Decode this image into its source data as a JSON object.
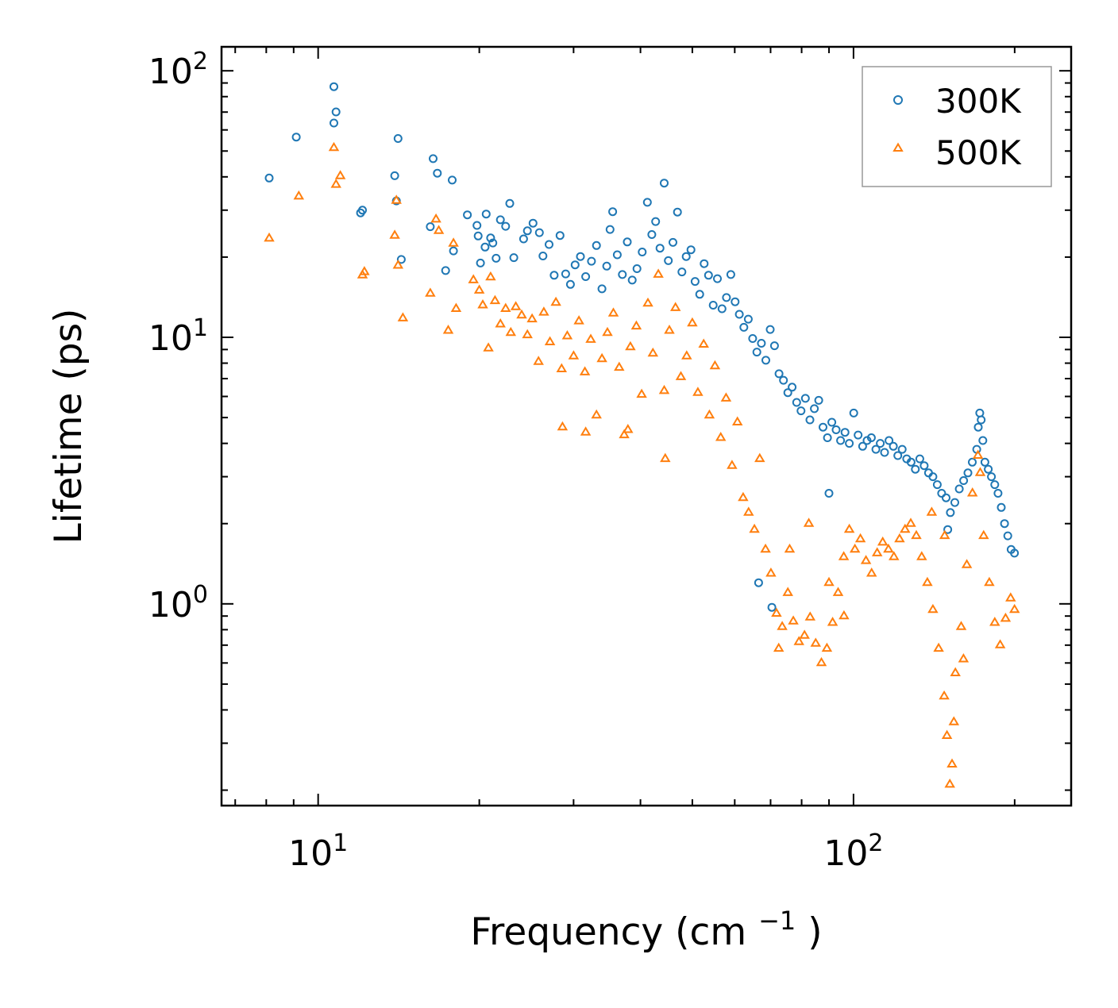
{
  "chart_data": {
    "type": "scatter",
    "title": "",
    "xlabel": "Frequency (cm",
    "xlabel_superscript": "−1",
    "xlabel_close": ")",
    "ylabel": "Lifetime (ps)",
    "xscale": "log",
    "yscale": "log",
    "xlim": [
      6.6,
      255
    ],
    "ylim": [
      0.175,
      123
    ],
    "x_ticks": [
      {
        "value": 10,
        "base": "10",
        "exp": "1"
      },
      {
        "value": 100,
        "base": "10",
        "exp": "2"
      }
    ],
    "y_ticks": [
      {
        "value": 1,
        "base": "10",
        "exp": "0"
      },
      {
        "value": 10,
        "base": "10",
        "exp": "1"
      },
      {
        "value": 100,
        "base": "10",
        "exp": "2"
      }
    ],
    "legend_position": "top-right",
    "series": [
      {
        "name": "300K",
        "marker": "circle",
        "color": "#1f77b4",
        "points": [
          [
            8.1,
            39.6
          ],
          [
            9.1,
            56.4
          ],
          [
            10.7,
            87.2
          ],
          [
            10.8,
            70.1
          ],
          [
            10.7,
            63.7
          ],
          [
            12.0,
            29.3
          ],
          [
            12.1,
            30.0
          ],
          [
            13.9,
            40.4
          ],
          [
            14.1,
            55.7
          ],
          [
            14.0,
            32.5
          ],
          [
            14.3,
            19.6
          ],
          [
            16.2,
            26.0
          ],
          [
            16.4,
            46.8
          ],
          [
            16.7,
            41.3
          ],
          [
            17.3,
            17.8
          ],
          [
            17.8,
            38.9
          ],
          [
            17.9,
            21.1
          ],
          [
            19.0,
            28.8
          ],
          [
            19.8,
            26.3
          ],
          [
            19.9,
            24.0
          ],
          [
            20.1,
            19.0
          ],
          [
            20.5,
            21.8
          ],
          [
            20.6,
            29.0
          ],
          [
            21.0,
            23.6
          ],
          [
            21.2,
            22.6
          ],
          [
            21.5,
            19.8
          ],
          [
            21.9,
            27.6
          ],
          [
            22.4,
            26.1
          ],
          [
            22.8,
            31.8
          ],
          [
            23.2,
            19.9
          ],
          [
            24.2,
            23.4
          ],
          [
            24.6,
            25.1
          ],
          [
            25.2,
            26.8
          ],
          [
            25.9,
            24.7
          ],
          [
            26.3,
            20.2
          ],
          [
            27.0,
            22.3
          ],
          [
            27.6,
            17.1
          ],
          [
            28.3,
            24.1
          ],
          [
            29.0,
            17.3
          ],
          [
            29.6,
            15.8
          ],
          [
            30.2,
            18.7
          ],
          [
            30.9,
            20.1
          ],
          [
            31.6,
            16.9
          ],
          [
            32.4,
            19.3
          ],
          [
            33.1,
            22.1
          ],
          [
            33.9,
            15.2
          ],
          [
            34.6,
            18.5
          ],
          [
            35.1,
            25.4
          ],
          [
            35.5,
            29.6
          ],
          [
            36.2,
            20.4
          ],
          [
            37.0,
            17.2
          ],
          [
            37.8,
            22.8
          ],
          [
            38.6,
            16.4
          ],
          [
            39.4,
            18.1
          ],
          [
            40.3,
            20.9
          ],
          [
            41.2,
            32.1
          ],
          [
            42.0,
            24.3
          ],
          [
            42.7,
            27.2
          ],
          [
            43.5,
            21.6
          ],
          [
            44.3,
            37.9
          ],
          [
            45.1,
            19.4
          ],
          [
            46.0,
            22.7
          ],
          [
            46.9,
            29.5
          ],
          [
            47.8,
            17.6
          ],
          [
            48.7,
            20.1
          ],
          [
            49.7,
            21.3
          ],
          [
            50.6,
            16.2
          ],
          [
            51.6,
            14.5
          ],
          [
            52.6,
            18.9
          ],
          [
            53.6,
            17.1
          ],
          [
            54.7,
            13.2
          ],
          [
            55.7,
            16.6
          ],
          [
            56.8,
            12.8
          ],
          [
            57.9,
            14.1
          ],
          [
            59.0,
            17.2
          ],
          [
            60.1,
            13.6
          ],
          [
            61.2,
            12.2
          ],
          [
            62.4,
            10.9
          ],
          [
            63.6,
            11.7
          ],
          [
            64.8,
            9.9
          ],
          [
            66.0,
            8.8
          ],
          [
            67.3,
            9.5
          ],
          [
            68.6,
            8.2
          ],
          [
            69.9,
            10.7
          ],
          [
            71.2,
            9.3
          ],
          [
            72.6,
            7.3
          ],
          [
            74.0,
            6.9
          ],
          [
            75.4,
            6.2
          ],
          [
            76.8,
            6.5
          ],
          [
            78.3,
            5.7
          ],
          [
            79.8,
            5.3
          ],
          [
            81.3,
            5.9
          ],
          [
            82.9,
            4.9
          ],
          [
            84.5,
            5.4
          ],
          [
            86.1,
            5.8
          ],
          [
            87.7,
            4.6
          ],
          [
            89.4,
            4.2
          ],
          [
            91.1,
            4.8
          ],
          [
            92.8,
            4.5
          ],
          [
            94.6,
            4.1
          ],
          [
            96.4,
            4.4
          ],
          [
            98.2,
            4.0
          ],
          [
            100.1,
            5.2
          ],
          [
            102.0,
            4.3
          ],
          [
            104.0,
            3.9
          ],
          [
            106.0,
            4.1
          ],
          [
            108.0,
            4.2
          ],
          [
            110.1,
            3.8
          ],
          [
            112.2,
            4.0
          ],
          [
            114.3,
            3.7
          ],
          [
            116.5,
            4.1
          ],
          [
            118.7,
            3.9
          ],
          [
            121.0,
            3.6
          ],
          [
            123.3,
            3.8
          ],
          [
            125.7,
            3.5
          ],
          [
            128.1,
            3.4
          ],
          [
            130.5,
            3.2
          ],
          [
            133.0,
            3.5
          ],
          [
            135.5,
            3.3
          ],
          [
            138.1,
            3.1
          ],
          [
            140.7,
            3.0
          ],
          [
            143.4,
            2.8
          ],
          [
            146.1,
            2.6
          ],
          [
            148.9,
            2.5
          ],
          [
            151.7,
            2.2
          ],
          [
            154.6,
            2.4
          ],
          [
            157.6,
            2.7
          ],
          [
            160.6,
            2.9
          ],
          [
            163.6,
            3.1
          ],
          [
            166.7,
            3.4
          ],
          [
            169.9,
            3.8
          ],
          [
            171.0,
            4.6
          ],
          [
            172.1,
            5.2
          ],
          [
            173.2,
            4.9
          ],
          [
            174.4,
            4.1
          ],
          [
            176.0,
            3.4
          ],
          [
            178.5,
            3.2
          ],
          [
            181.0,
            3.0
          ],
          [
            183.6,
            2.8
          ],
          [
            186.2,
            2.6
          ],
          [
            188.8,
            2.3
          ],
          [
            191.5,
            2.0
          ],
          [
            194.2,
            1.8
          ],
          [
            197.0,
            1.6
          ],
          [
            199.8,
            1.55
          ],
          [
            66.5,
            1.2
          ],
          [
            70.4,
            0.97
          ],
          [
            90.0,
            2.6
          ],
          [
            150.0,
            1.9
          ]
        ]
      },
      {
        "name": "500K",
        "marker": "triangle",
        "color": "#ff7f0e",
        "points": [
          [
            8.1,
            23.5
          ],
          [
            9.2,
            33.8
          ],
          [
            10.7,
            51.4
          ],
          [
            10.8,
            37.4
          ],
          [
            11.0,
            40.3
          ],
          [
            12.1,
            17.1
          ],
          [
            12.2,
            17.6
          ],
          [
            13.9,
            24.1
          ],
          [
            14.0,
            32.6
          ],
          [
            14.1,
            18.6
          ],
          [
            14.4,
            11.8
          ],
          [
            16.2,
            14.6
          ],
          [
            16.6,
            27.7
          ],
          [
            16.8,
            25.1
          ],
          [
            17.5,
            10.6
          ],
          [
            17.9,
            22.5
          ],
          [
            18.1,
            12.8
          ],
          [
            19.5,
            16.4
          ],
          [
            20.0,
            15.0
          ],
          [
            20.3,
            13.2
          ],
          [
            20.8,
            9.1
          ],
          [
            21.0,
            16.8
          ],
          [
            21.4,
            13.7
          ],
          [
            21.9,
            11.2
          ],
          [
            22.4,
            12.8
          ],
          [
            22.9,
            10.4
          ],
          [
            23.4,
            13.0
          ],
          [
            24.0,
            12.1
          ],
          [
            24.6,
            10.2
          ],
          [
            25.1,
            11.7
          ],
          [
            25.8,
            8.1
          ],
          [
            26.4,
            12.4
          ],
          [
            27.1,
            9.6
          ],
          [
            27.8,
            13.5
          ],
          [
            28.5,
            7.6
          ],
          [
            28.6,
            4.6
          ],
          [
            29.2,
            10.1
          ],
          [
            30.0,
            8.5
          ],
          [
            30.7,
            11.5
          ],
          [
            31.5,
            7.4
          ],
          [
            31.6,
            4.4
          ],
          [
            32.3,
            9.8
          ],
          [
            33.1,
            5.1
          ],
          [
            33.9,
            8.3
          ],
          [
            34.7,
            10.4
          ],
          [
            35.6,
            12.3
          ],
          [
            36.5,
            7.7
          ],
          [
            37.3,
            4.3
          ],
          [
            37.9,
            4.5
          ],
          [
            38.3,
            9.2
          ],
          [
            39.3,
            11.0
          ],
          [
            40.2,
            6.1
          ],
          [
            41.3,
            13.4
          ],
          [
            42.2,
            8.7
          ],
          [
            43.2,
            17.2
          ],
          [
            44.3,
            6.3
          ],
          [
            44.5,
            3.5
          ],
          [
            45.3,
            10.6
          ],
          [
            46.5,
            12.9
          ],
          [
            47.6,
            7.1
          ],
          [
            48.8,
            8.5
          ],
          [
            50.0,
            11.3
          ],
          [
            51.2,
            6.2
          ],
          [
            52.5,
            9.4
          ],
          [
            53.8,
            5.1
          ],
          [
            55.1,
            7.8
          ],
          [
            56.5,
            4.2
          ],
          [
            57.8,
            5.9
          ],
          [
            59.3,
            3.3
          ],
          [
            60.7,
            4.8
          ],
          [
            62.2,
            2.5
          ],
          [
            63.7,
            2.2
          ],
          [
            65.3,
            1.9
          ],
          [
            66.8,
            3.5
          ],
          [
            68.5,
            1.6
          ],
          [
            70.1,
            1.3
          ],
          [
            71.8,
            0.92
          ],
          [
            72.5,
            0.68
          ],
          [
            73.6,
            0.82
          ],
          [
            75.4,
            1.1
          ],
          [
            77.2,
            0.86
          ],
          [
            79.1,
            0.72
          ],
          [
            81.0,
            0.76
          ],
          [
            83.0,
            0.89
          ],
          [
            85.0,
            0.71
          ],
          [
            87.1,
            0.6
          ],
          [
            89.2,
            0.68
          ],
          [
            91.4,
            0.85
          ],
          [
            93.6,
            1.1
          ],
          [
            95.9,
            1.5
          ],
          [
            98.2,
            1.9
          ],
          [
            100.6,
            1.6
          ],
          [
            103.0,
            1.75
          ],
          [
            105.5,
            1.45
          ],
          [
            108.1,
            1.3
          ],
          [
            110.7,
            1.55
          ],
          [
            113.4,
            1.7
          ],
          [
            116.2,
            1.6
          ],
          [
            119.0,
            1.5
          ],
          [
            121.9,
            1.75
          ],
          [
            124.8,
            1.9
          ],
          [
            127.9,
            2.0
          ],
          [
            131.0,
            1.8
          ],
          [
            134.1,
            1.5
          ],
          [
            137.4,
            1.2
          ],
          [
            140.7,
            0.95
          ],
          [
            144.2,
            0.68
          ],
          [
            147.7,
            0.45
          ],
          [
            149.5,
            0.32
          ],
          [
            151.3,
            0.21
          ],
          [
            152.8,
            0.25
          ],
          [
            154.0,
            0.36
          ],
          [
            155.0,
            0.55
          ],
          [
            158.9,
            0.82
          ],
          [
            162.8,
            1.4
          ],
          [
            166.8,
            2.6
          ],
          [
            170.8,
            3.6
          ],
          [
            172.5,
            3.1
          ],
          [
            175.0,
            1.8
          ],
          [
            179.3,
            1.2
          ],
          [
            183.6,
            0.85
          ],
          [
            187.9,
            0.7
          ],
          [
            192.3,
            0.88
          ],
          [
            196.6,
            1.05
          ],
          [
            199.9,
            0.95
          ],
          [
            76.0,
            1.6
          ],
          [
            82.5,
            2.0
          ],
          [
            90.0,
            1.2
          ],
          [
            96.0,
            0.9
          ],
          [
            160.5,
            0.62
          ],
          [
            148.0,
            1.8
          ],
          [
            140.0,
            2.2
          ]
        ]
      }
    ]
  }
}
